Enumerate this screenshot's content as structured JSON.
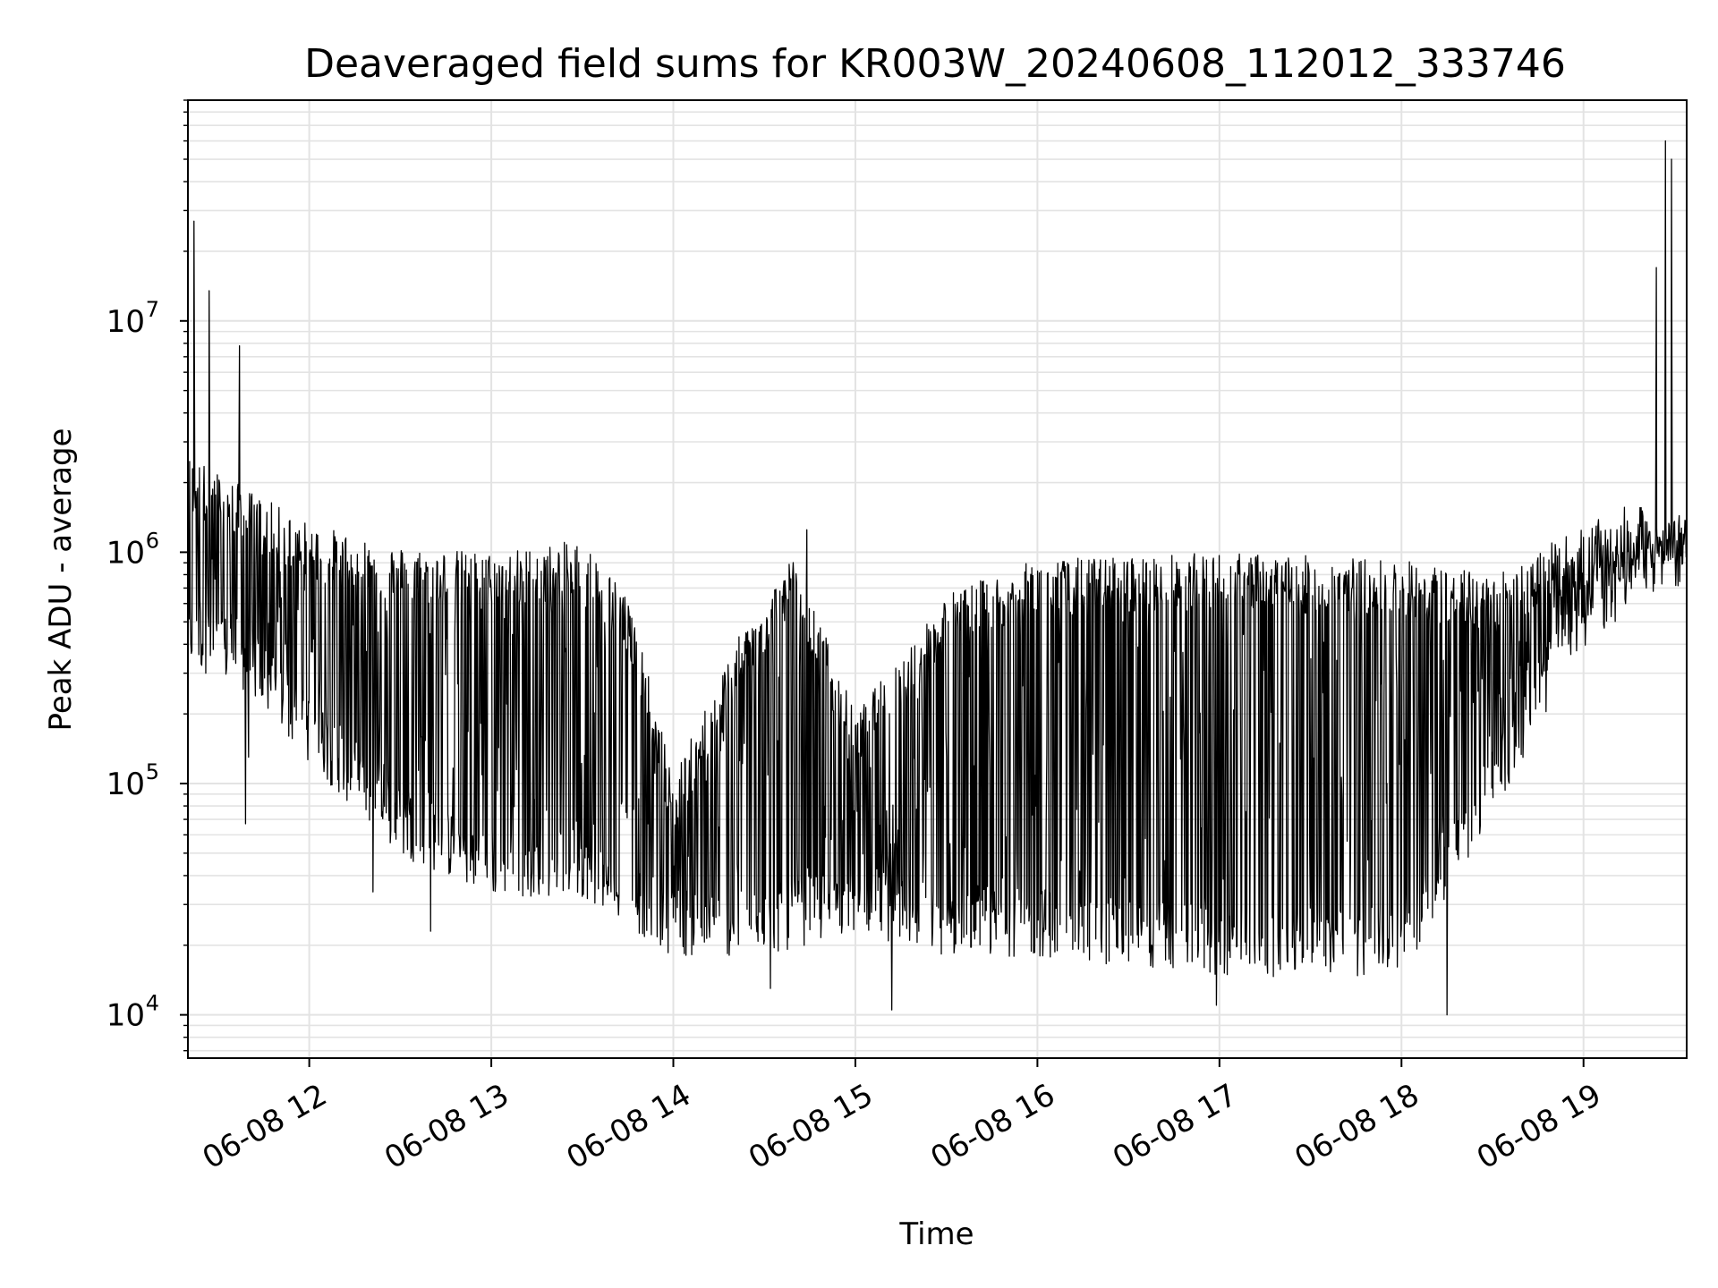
{
  "chart_data": {
    "type": "line",
    "title": "Deaveraged field sums for KR003W_20240608_112012_333746",
    "xlabel": "Time",
    "ylabel": "Peak ADU - average",
    "y_scale": "log",
    "ylim": [
      6500,
      90000000
    ],
    "xlim": [
      "2024-06-08 11:20",
      "2024-06-08 19:34"
    ],
    "grid": true,
    "x_ticks": [
      {
        "label": "06-08 12",
        "time": "2024-06-08 12:00"
      },
      {
        "label": "06-08 13",
        "time": "2024-06-08 13:00"
      },
      {
        "label": "06-08 14",
        "time": "2024-06-08 14:00"
      },
      {
        "label": "06-08 15",
        "time": "2024-06-08 15:00"
      },
      {
        "label": "06-08 16",
        "time": "2024-06-08 16:00"
      },
      {
        "label": "06-08 17",
        "time": "2024-06-08 17:00"
      },
      {
        "label": "06-08 18",
        "time": "2024-06-08 18:00"
      },
      {
        "label": "06-08 19",
        "time": "2024-06-08 19:00"
      }
    ],
    "y_ticks": [
      {
        "base": "10",
        "exp": "4",
        "value": 10000
      },
      {
        "base": "10",
        "exp": "5",
        "value": 100000
      },
      {
        "base": "10",
        "exp": "6",
        "value": 1000000
      },
      {
        "base": "10",
        "exp": "7",
        "value": 10000000
      }
    ],
    "series": [
      {
        "color": "#000000",
        "envelope_upper": [
          {
            "t": "2024-06-08 11:20",
            "v": 2000000
          },
          {
            "t": "2024-06-08 11:40",
            "v": 1400000
          },
          {
            "t": "2024-06-08 12:00",
            "v": 1000000
          },
          {
            "t": "2024-06-08 12:30",
            "v": 800000
          },
          {
            "t": "2024-06-08 13:00",
            "v": 750000
          },
          {
            "t": "2024-06-08 13:30",
            "v": 850000
          },
          {
            "t": "2024-06-08 13:45",
            "v": 500000
          },
          {
            "t": "2024-06-08 14:00",
            "v": 80000
          },
          {
            "t": "2024-06-08 14:20",
            "v": 300000
          },
          {
            "t": "2024-06-08 14:40",
            "v": 750000
          },
          {
            "t": "2024-06-08 15:00",
            "v": 150000
          },
          {
            "t": "2024-06-08 15:30",
            "v": 500000
          },
          {
            "t": "2024-06-08 16:00",
            "v": 700000
          },
          {
            "t": "2024-06-08 17:00",
            "v": 750000
          },
          {
            "t": "2024-06-08 18:00",
            "v": 700000
          },
          {
            "t": "2024-06-08 18:30",
            "v": 600000
          },
          {
            "t": "2024-06-08 18:55",
            "v": 900000
          },
          {
            "t": "2024-06-08 19:15",
            "v": 1200000
          },
          {
            "t": "2024-06-08 19:34",
            "v": 1100000
          }
        ],
        "envelope_lower": [
          {
            "t": "2024-06-08 11:20",
            "v": 400000
          },
          {
            "t": "2024-06-08 11:40",
            "v": 300000
          },
          {
            "t": "2024-06-08 12:00",
            "v": 150000
          },
          {
            "t": "2024-06-08 12:30",
            "v": 60000
          },
          {
            "t": "2024-06-08 13:00",
            "v": 40000
          },
          {
            "t": "2024-06-08 13:30",
            "v": 40000
          },
          {
            "t": "2024-06-08 14:00",
            "v": 22000
          },
          {
            "t": "2024-06-08 14:30",
            "v": 22000
          },
          {
            "t": "2024-06-08 15:00",
            "v": 28000
          },
          {
            "t": "2024-06-08 15:30",
            "v": 22000
          },
          {
            "t": "2024-06-08 16:00",
            "v": 22000
          },
          {
            "t": "2024-06-08 17:00",
            "v": 18000
          },
          {
            "t": "2024-06-08 18:00",
            "v": 18000
          },
          {
            "t": "2024-06-08 18:40",
            "v": 150000
          },
          {
            "t": "2024-06-08 18:55",
            "v": 400000
          },
          {
            "t": "2024-06-08 19:15",
            "v": 700000
          },
          {
            "t": "2024-06-08 19:34",
            "v": 900000
          }
        ],
        "spikes": [
          {
            "t": "2024-06-08 11:22",
            "v": 27000000
          },
          {
            "t": "2024-06-08 11:27",
            "v": 13500000
          },
          {
            "t": "2024-06-08 11:37",
            "v": 7800000
          },
          {
            "t": "2024-06-08 14:44",
            "v": 1250000
          },
          {
            "t": "2024-06-08 19:24",
            "v": 17000000
          },
          {
            "t": "2024-06-08 19:27",
            "v": 60000000
          },
          {
            "t": "2024-06-08 19:29",
            "v": 50000000
          }
        ],
        "dips": [
          {
            "t": "2024-06-08 11:40",
            "v": 130000
          },
          {
            "t": "2024-06-08 11:39",
            "v": 67000
          },
          {
            "t": "2024-06-08 12:21",
            "v": 34000
          },
          {
            "t": "2024-06-08 12:40",
            "v": 23000
          },
          {
            "t": "2024-06-08 14:32",
            "v": 13000
          },
          {
            "t": "2024-06-08 15:12",
            "v": 10500
          },
          {
            "t": "2024-06-08 16:59",
            "v": 11000
          },
          {
            "t": "2024-06-08 18:15",
            "v": 10000
          }
        ]
      }
    ]
  }
}
